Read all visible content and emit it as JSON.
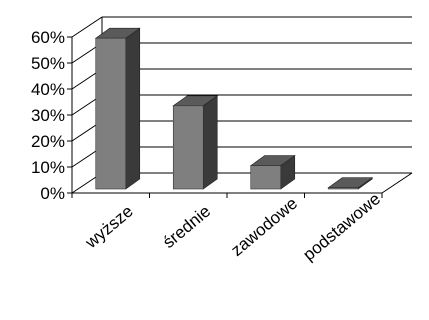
{
  "chart_data": {
    "type": "bar",
    "style": "3d-column",
    "categories": [
      "wyższe",
      "średnie",
      "zawodowe",
      "podstawowe"
    ],
    "values": [
      0.58,
      0.32,
      0.09,
      0.005
    ],
    "ylim": [
      0,
      0.6
    ],
    "yticks": [
      0,
      0.1,
      0.2,
      0.3,
      0.4,
      0.5,
      0.6
    ],
    "ytick_labels": [
      "0%",
      "10%",
      "20%",
      "30%",
      "40%",
      "50%",
      "60%"
    ],
    "title": "",
    "xlabel": "",
    "ylabel": "",
    "grid": true,
    "legend": "none",
    "colors": {
      "bar_front": "#7f7f7f",
      "bar_side": "#3a3a3a",
      "bar_top": "#5a5a5a",
      "grid": "#000000",
      "axis": "#000000"
    }
  }
}
